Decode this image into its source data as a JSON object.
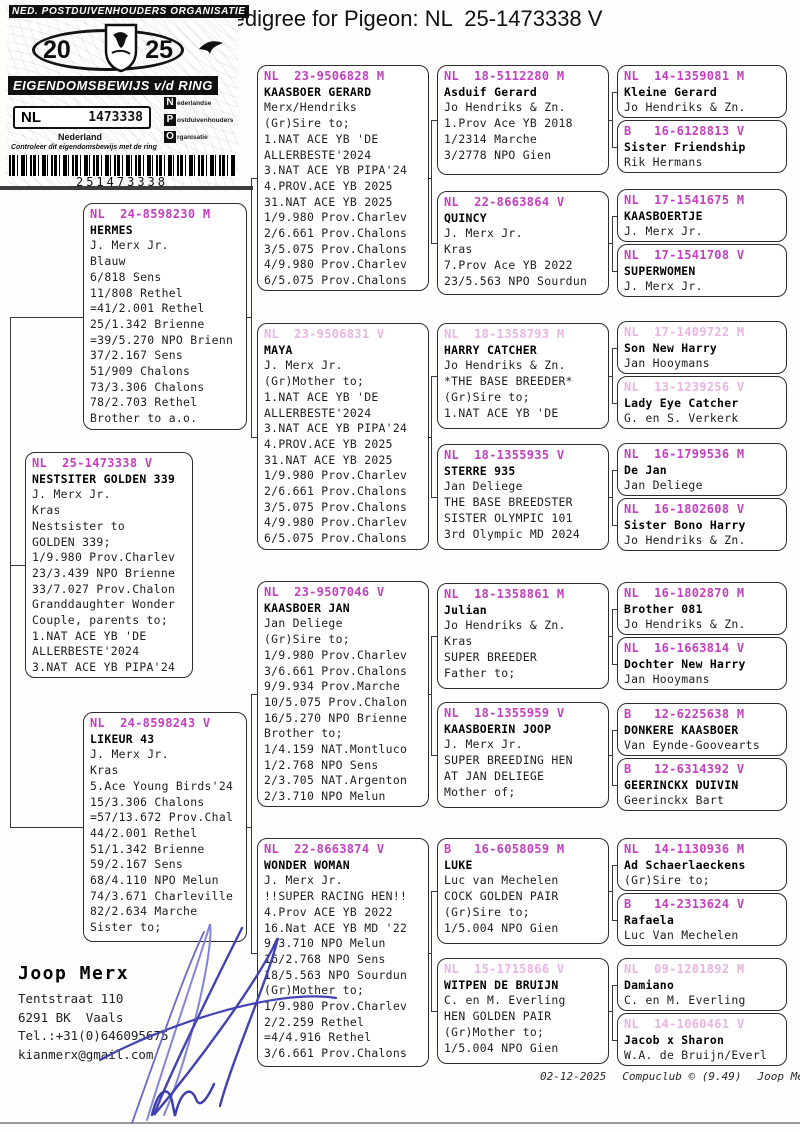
{
  "title": "Pedigree for Pigeon: NL  25-1473338 V",
  "stamp": {
    "org": "NED. POSTDUIVENHOUDERS ORGANISATIE",
    "year_left": "20",
    "year_right": "25",
    "band_title": "EIGENDOMSBEWIJS v/d RING",
    "country_code": "NL",
    "ring_number": "1473338",
    "country_label": "Nederland",
    "npo": [
      {
        "letter": "N",
        "word": "ederlandse"
      },
      {
        "letter": "P",
        "word": "ostduivenhouders"
      },
      {
        "letter": "O",
        "word": "rganisatie"
      }
    ],
    "check_text": "Controleer dit eigendomsbewijs met de ring",
    "barcode_number": "251473338"
  },
  "pedigree": {
    "boxes": {
      "subject": {
        "ring": "NL  25-1473338 V",
        "name": "NESTSITER GOLDEN 339",
        "faded": false,
        "lines": [
          "J. Merx Jr.",
          "Kras",
          "Nestsister to",
          "GOLDEN 339;",
          "1/9.980 Prov.Charlev",
          "23/3.439 NPO Brienne",
          "33/7.027 Prov.Chalon",
          "Granddaughter Wonder",
          "Couple, parents to;",
          "1.NAT ACE YB 'DE",
          "ALLERBESTE'2024",
          "3.NAT ACE YB PIPA'24"
        ]
      },
      "sire": {
        "ring": "NL  24-8598230 M",
        "name": "HERMES",
        "faded": false,
        "lines": [
          "J. Merx Jr.",
          "Blauw",
          "6/818 Sens",
          "11/808 Rethel",
          "=41/2.001 Rethel",
          "25/1.342 Brienne",
          "=39/5.270 NPO Brienn",
          "37/2.167 Sens",
          "51/909 Chalons",
          "73/3.306 Chalons",
          "78/2.703 Rethel",
          "Brother to a.o."
        ]
      },
      "dam": {
        "ring": "NL  24-8598243 V",
        "name": "LIKEUR 43",
        "faded": false,
        "lines": [
          "J. Merx Jr.",
          "Kras",
          "5.Ace Young Birds'24",
          "15/3.306 Chalons",
          "=57/13.672 Prov.Chal",
          "44/2.001 Rethel",
          "51/1.342 Brienne",
          "59/2.167 Sens",
          "68/4.110 NPO Melun",
          "74/3.671 Charleville",
          "82/2.634 Marche",
          "Sister to;"
        ]
      },
      "ss": {
        "ring": "NL  23-9506828 M",
        "name": "KAASBOER GERARD",
        "faded": false,
        "lines": [
          "Merx/Hendriks",
          "(Gr)Sire to;",
          "1.NAT ACE YB 'DE",
          "ALLERBESTE'2024",
          "3.NAT ACE YB PIPA'24",
          "4.PROV.ACE YB 2025",
          "31.NAT ACE YB 2025",
          "1/9.980 Prov.Charlev",
          "2/6.661 Prov.Chalons",
          "3/5.075 Prov.Chalons",
          "4/9.980 Prov.Charlev",
          "6/5.075 Prov.Chalons"
        ]
      },
      "sd": {
        "ring": "NL  23-9506831 V",
        "name": "MAYA",
        "faded": true,
        "lines": [
          "J. Merx Jr.",
          "(Gr)Mother to;",
          "1.NAT ACE YB 'DE",
          "ALLERBESTE'2024",
          "3.NAT ACE YB PIPA'24",
          "4.PROV.ACE YB 2025",
          "31.NAT ACE YB 2025",
          "1/9.980 Prov.Charlev",
          "2/6.661 Prov.Chalons",
          "3/5.075 Prov.Chalons",
          "4/9.980 Prov.Charlev",
          "6/5.075 Prov.Chalons"
        ]
      },
      "ds": {
        "ring": "NL  23-9507046 V",
        "name": "KAASBOER JAN",
        "faded": false,
        "lines": [
          "Jan Deliege",
          "(Gr)Sire to;",
          "1/9.980 Prov.Charlev",
          "3/6.661 Prov.Chalons",
          "9/9.934 Prov.Marche",
          "10/5.075 Prov.Chalon",
          "16/5.270 NPO Brienne",
          "Brother to;",
          "1/4.159 NAT.Montluco",
          "1/2.768 NPO Sens",
          "2/3.705 NAT.Argenton",
          "2/3.710 NPO Melun"
        ]
      },
      "dd": {
        "ring": "NL  22-8663874 V",
        "name": "WONDER WOMAN",
        "faded": false,
        "lines": [
          "J. Merx Jr.",
          "!!SUPER RACING HEN!!",
          "4.Prov ACE YB 2022",
          "16.Nat ACE YB MD '22",
          "9/3.710 NPO Melun",
          "16/2.768 NPO Sens",
          "18/5.563 NPO Sourdun",
          "(Gr)Mother to;",
          "1/9.980 Prov.Charlev",
          "2/2.259 Rethel",
          "=4/4.916 Rethel",
          "3/6.661 Prov.Chalons"
        ]
      },
      "sss": {
        "ring": "NL  18-5112280 M",
        "name": "Asduif Gerard",
        "faded": false,
        "lines": [
          "Jo Hendriks & Zn.",
          "1.Prov Ace YB 2018",
          "1/2314 Marche",
          "3/2778 NPO Gien"
        ]
      },
      "ssd": {
        "ring": "NL  22-8663864 V",
        "name": "QUINCY",
        "faded": false,
        "lines": [
          "J. Merx Jr.",
          "Kras",
          "7.Prov Ace YB 2022",
          "23/5.563 NPO Sourdun"
        ]
      },
      "sds": {
        "ring": "NL  18-1358793 M",
        "name": "HARRY CATCHER",
        "faded": true,
        "lines": [
          "Jo Hendriks & Zn.",
          "*THE BASE BREEDER*",
          "(Gr)Sire to;",
          "1.NAT ACE YB 'DE"
        ]
      },
      "sdd": {
        "ring": "NL  18-1355935 V",
        "name": "STERRE 935",
        "faded": false,
        "lines": [
          "Jan Deliege",
          "THE BASE BREEDSTER",
          "SISTER OLYMPIC 101",
          "3rd Olympic MD 2024"
        ]
      },
      "dss": {
        "ring": "NL  18-1358861 M",
        "name": "Julian",
        "faded": false,
        "lines": [
          "Jo Hendriks & Zn.",
          "Kras",
          "SUPER BREEDER",
          "Father to;"
        ]
      },
      "dsd": {
        "ring": "NL  18-1355959 V",
        "name": "KAASBOERIN JOOP",
        "faded": false,
        "lines": [
          "J. Merx Jr.",
          "SUPER BREEDING HEN",
          "AT JAN DELIEGE",
          "Mother of;"
        ]
      },
      "dds": {
        "ring": "B   16-6058059 M",
        "name": "LUKE",
        "faded": false,
        "lines": [
          "Luc van Mechelen",
          "COCK GOLDEN PAIR",
          "(Gr)Sire to;",
          "1/5.004 NPO Gien"
        ]
      },
      "ddd": {
        "ring": "NL  15-1715866 V",
        "name": "WITPEN DE BRUIJN",
        "faded": true,
        "lines": [
          "C. en M. Everling",
          "HEN GOLDEN PAIR",
          "(Gr)Mother to;",
          "1/5.004 NPO Gien"
        ]
      },
      "ssss": {
        "ring": "NL  14-1359081 M",
        "name": "Kleine Gerard",
        "faded": false,
        "lines": [
          "Jo Hendriks & Zn."
        ]
      },
      "sssd": {
        "ring": "B   16-6128813 V",
        "name": "Sister Friendship",
        "faded": false,
        "lines": [
          "Rik Hermans"
        ]
      },
      "ssds": {
        "ring": "NL  17-1541675 M",
        "name": "KAASBOERTJE",
        "faded": false,
        "lines": [
          "J. Merx Jr."
        ]
      },
      "ssdd": {
        "ring": "NL  17-1541708 V",
        "name": "SUPERWOMEN",
        "faded": false,
        "lines": [
          "J. Merx Jr."
        ]
      },
      "sdss": {
        "ring": "NL  17-1409722 M",
        "name": "Son New Harry",
        "faded": true,
        "lines": [
          "Jan Hooymans"
        ]
      },
      "sdsd": {
        "ring": "NL  13-1239256 V",
        "name": "Lady Eye Catcher",
        "faded": true,
        "lines": [
          "G. en S. Verkerk"
        ]
      },
      "sdds": {
        "ring": "NL  16-1799536 M",
        "name": "De Jan",
        "faded": false,
        "lines": [
          "Jan Deliege"
        ]
      },
      "sddd": {
        "ring": "NL  16-1802608 V",
        "name": "Sister Bono Harry",
        "faded": false,
        "lines": [
          "Jo Hendriks & Zn."
        ]
      },
      "dsss": {
        "ring": "NL  16-1802870 M",
        "name": "Brother 081",
        "faded": false,
        "lines": [
          "Jo Hendriks & Zn."
        ]
      },
      "dssd": {
        "ring": "NL  16-1663814 V",
        "name": "Dochter New Harry",
        "faded": false,
        "lines": [
          "Jan Hooymans"
        ]
      },
      "dsds": {
        "ring": "B   12-6225638 M",
        "name": "DONKERE KAASBOER",
        "faded": false,
        "lines": [
          "Van Eynde-Goovearts"
        ]
      },
      "dsdd": {
        "ring": "B   12-6314392 V",
        "name": "GEERINCKX DUIVIN",
        "faded": false,
        "lines": [
          "Geerinckx Bart"
        ]
      },
      "ddss": {
        "ring": "NL  14-1130936 M",
        "name": "Ad Schaerlaeckens",
        "faded": false,
        "lines": [
          "(Gr)Sire to;"
        ]
      },
      "ddsd": {
        "ring": "B   14-2313624 V",
        "name": "Rafaela",
        "faded": false,
        "lines": [
          "Luc Van Mechelen"
        ]
      },
      "ddds": {
        "ring": "NL  09-1201892 M",
        "name": "Damiano",
        "faded": true,
        "lines": [
          "C. en M. Everling"
        ]
      },
      "dddd": {
        "ring": "NL  14-1060461 V",
        "name": "Jacob x Sharon",
        "faded": true,
        "lines": [
          "W.A. de Bruijn/Everl"
        ]
      }
    }
  },
  "contact": {
    "name": "Joop Merx",
    "lines": [
      "Tentstraat 110",
      "6291 BK  Vaals",
      "Tel.:+31(0)646095675",
      "kianmerx@gmail.com"
    ]
  },
  "footer": {
    "date": "02-12-2025",
    "program": "Compuclub © (9.49)",
    "author": "Joop Merx"
  }
}
